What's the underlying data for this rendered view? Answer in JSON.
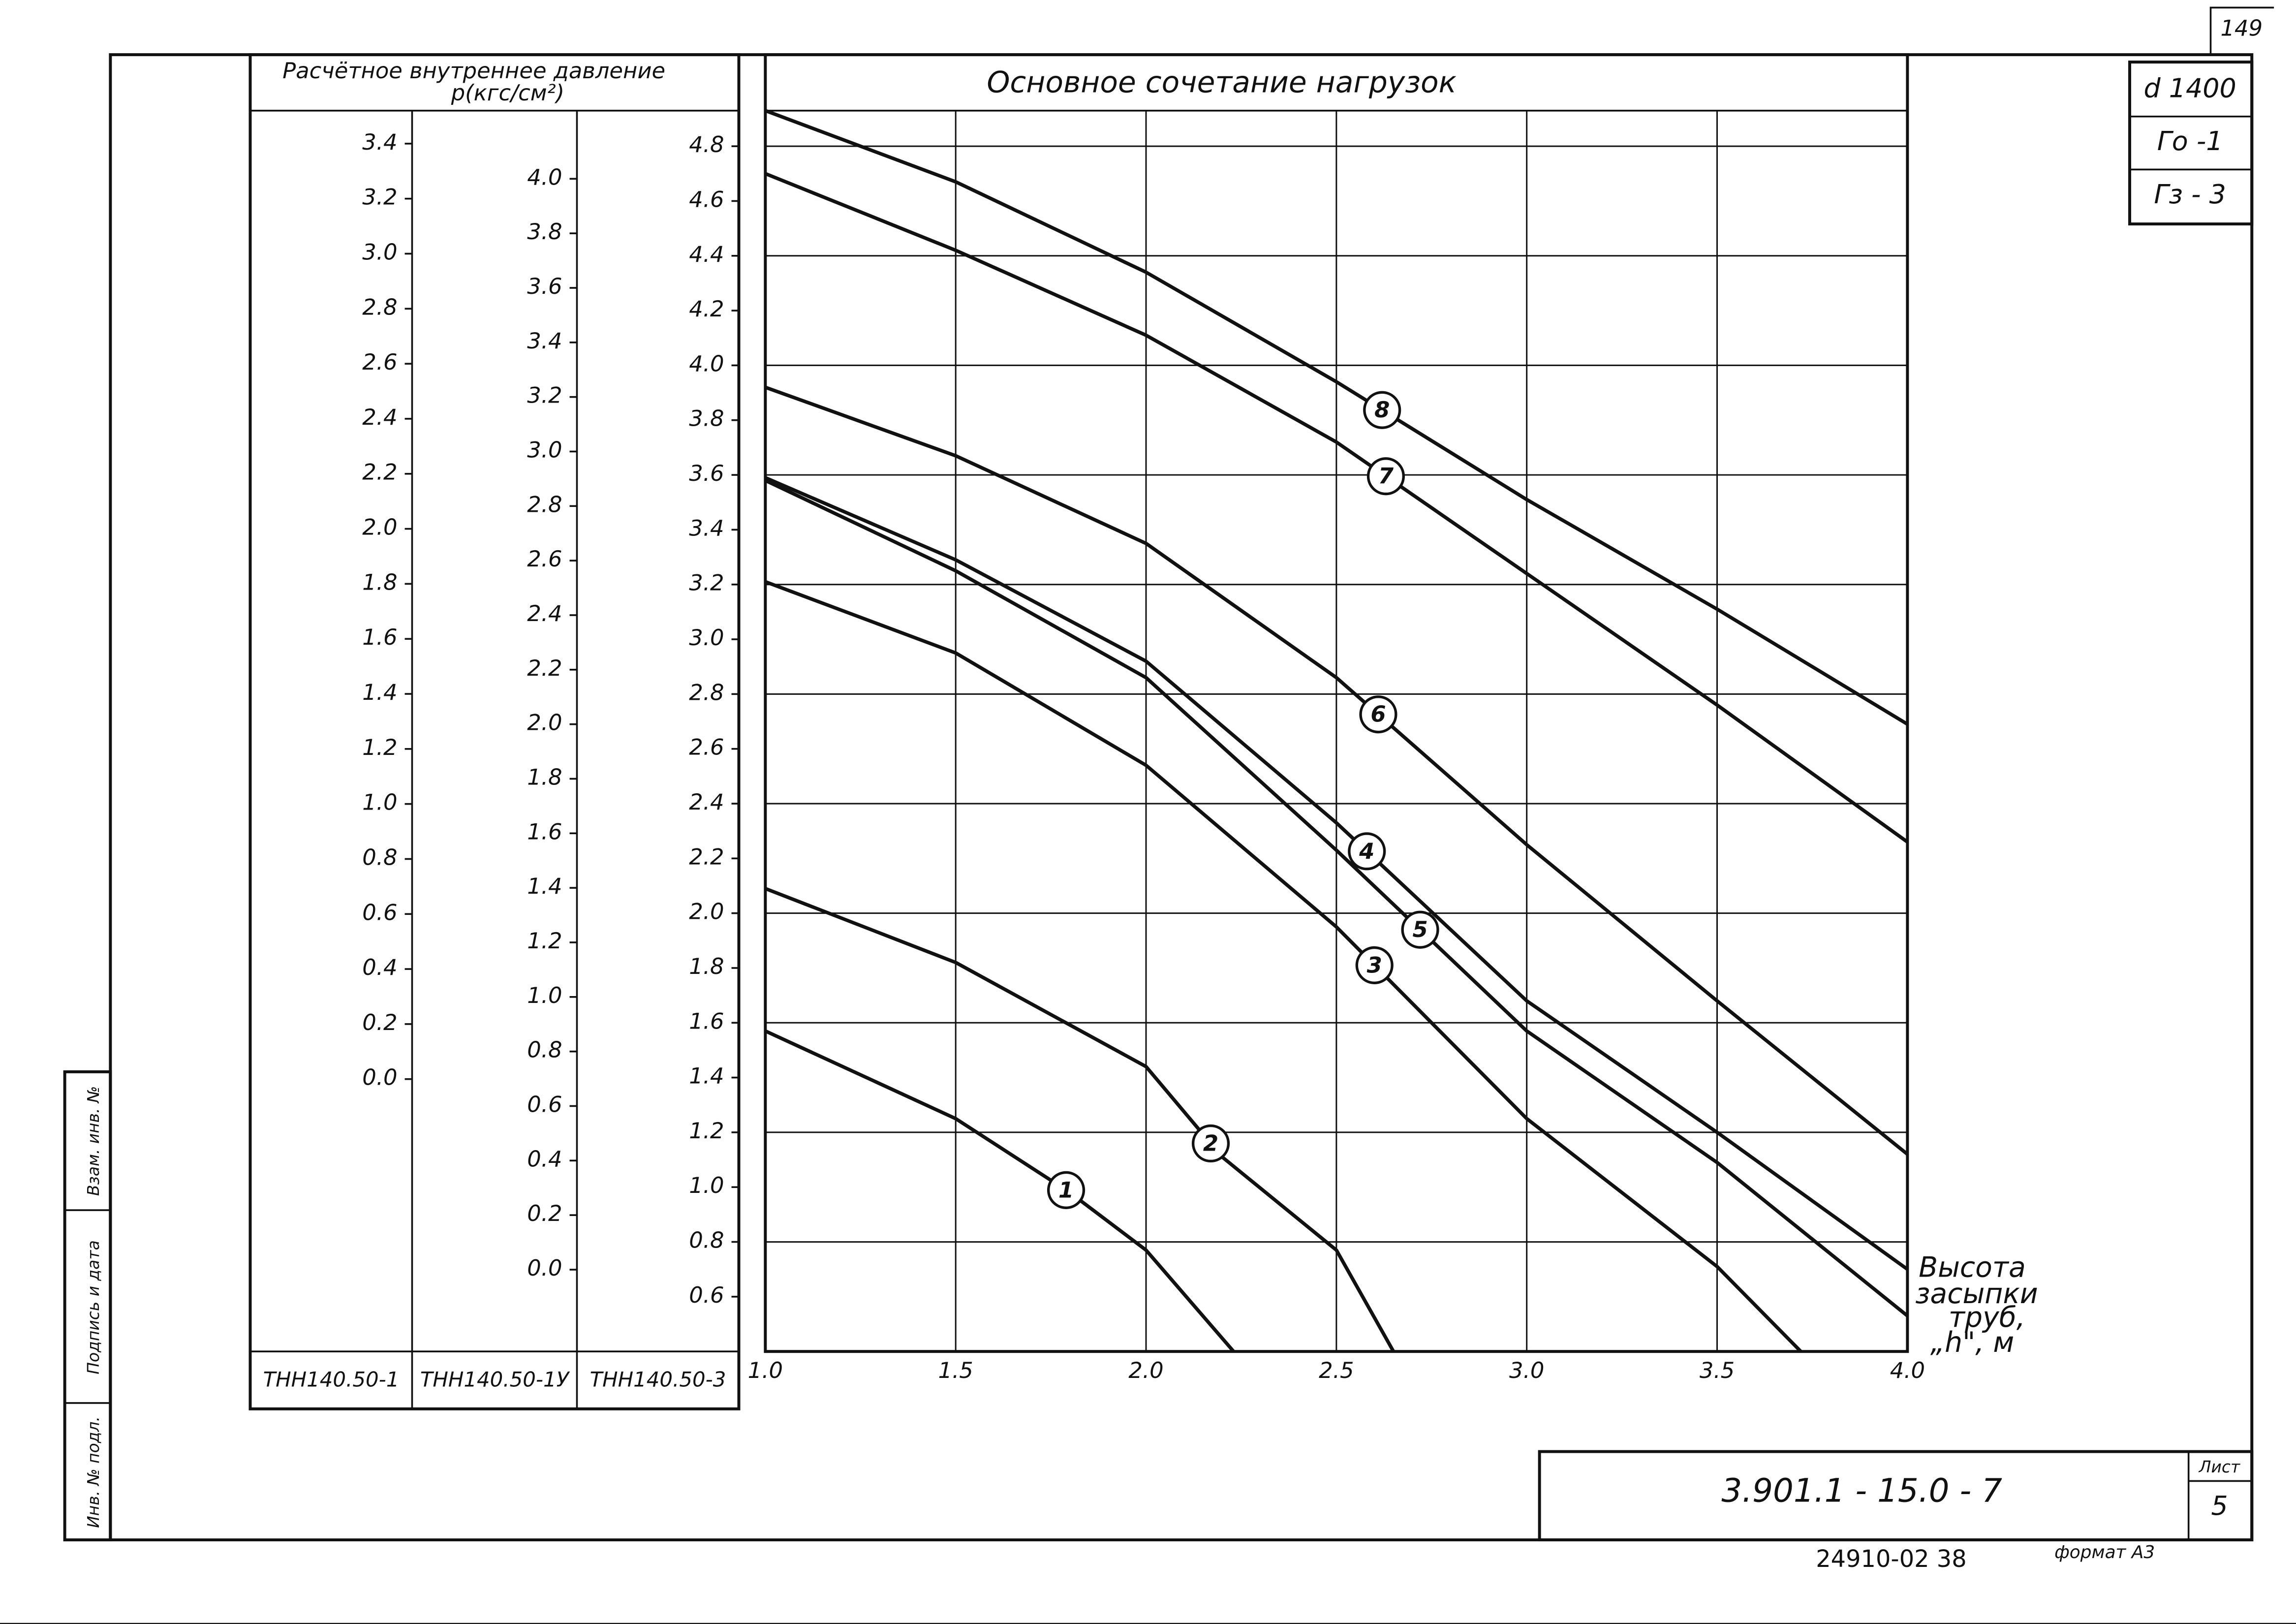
{
  "chart_data": {
    "type": "line",
    "title": "Основное сочетание нагрузок",
    "table_header": [
      "Расчётное внутреннее давление",
      "p(кгс/см²)"
    ],
    "xlabel": [
      "Высота",
      "засыпки",
      "труб,",
      "„h\", м"
    ],
    "xlim": [
      1,
      4
    ],
    "xticks": [
      {
        "value": 1,
        "label": "1.0"
      },
      1.5,
      {
        "value": 2,
        "label": "2.0"
      },
      2.5,
      {
        "value": 3,
        "label": "3.0"
      },
      3.5,
      {
        "value": 4,
        "label": "4.0"
      }
    ],
    "ylabel": "ТНН140.50-3",
    "ylim": [
      0.4,
      4.93
    ],
    "yticks": [
      4.8,
      4.6,
      4.4,
      4.2,
      {
        "value": 4,
        "label": "4.0"
      },
      3.8,
      3.6,
      3.4,
      3.2,
      {
        "value": 3,
        "label": "3.0"
      },
      2.8,
      2.6,
      2.4,
      2.2,
      {
        "value": 2,
        "label": "2.0"
      },
      1.8,
      1.6,
      1.4,
      1.2,
      {
        "value": 1,
        "label": "1.0"
      },
      0.8,
      0.6
    ],
    "ygrid": [
      4.8,
      4.4,
      4.0,
      3.6,
      3.2,
      2.8,
      2.4,
      2.0,
      1.6,
      1.2,
      0.8
    ],
    "grid": true,
    "extra_axes": [
      {
        "label": "ТНН140.50-1",
        "lim": [
          -0.99,
          3.52
        ],
        "ticks": [
          3.4,
          3.2,
          {
            "value": 3,
            "label": "3.0"
          },
          2.8,
          2.6,
          2.4,
          2.2,
          {
            "value": 2,
            "label": "2.0"
          },
          1.8,
          1.6,
          1.4,
          1.2,
          {
            "value": 1,
            "label": "1.0"
          },
          0.8,
          0.6,
          0.4,
          0.2,
          {
            "value": 0,
            "label": "0.0"
          }
        ]
      },
      {
        "label": "ТНН140.50-1У",
        "lim": [
          -0.3,
          4.25
        ],
        "ticks": [
          {
            "value": 4,
            "label": "4.0"
          },
          3.8,
          3.6,
          3.4,
          3.2,
          {
            "value": 3,
            "label": "3.0"
          },
          2.8,
          2.6,
          2.4,
          2.2,
          {
            "value": 2,
            "label": "2.0"
          },
          1.8,
          1.6,
          1.4,
          1.2,
          {
            "value": 1,
            "label": "1.0"
          },
          0.8,
          0.6,
          0.4,
          0.2,
          {
            "value": 0,
            "label": "0.0"
          }
        ]
      }
    ],
    "series": [
      {
        "name": "1",
        "color": "#111111",
        "x": [
          1,
          1.5,
          1.8,
          2,
          2.23
        ],
        "values": [
          1.57,
          1.25,
          0.98,
          0.77,
          0.4
        ]
      },
      {
        "name": "2",
        "color": "#111111",
        "x": [
          1,
          1.5,
          2,
          2.2,
          2.5,
          2.65
        ],
        "values": [
          2.09,
          1.82,
          1.44,
          1.11,
          0.77,
          0.4
        ]
      },
      {
        "name": "3",
        "color": "#111111",
        "x": [
          1,
          1.5,
          2,
          2.5,
          3,
          3.5,
          3.72
        ],
        "values": [
          3.21,
          2.95,
          2.54,
          1.95,
          1.25,
          0.71,
          0.4
        ]
      },
      {
        "name": "4",
        "color": "#111111",
        "x": [
          1,
          1.5,
          2,
          2.5,
          3,
          3.5,
          4
        ],
        "values": [
          3.59,
          3.29,
          2.92,
          2.33,
          1.68,
          1.2,
          0.7
        ]
      },
      {
        "name": "5",
        "color": "#111111",
        "x": [
          1,
          1.5,
          2,
          2.5,
          3,
          3.5,
          4
        ],
        "values": [
          3.58,
          3.25,
          2.86,
          2.23,
          1.57,
          1.09,
          0.53
        ]
      },
      {
        "name": "6",
        "color": "#111111",
        "x": [
          1,
          1.5,
          2,
          2.5,
          3,
          3.5,
          4
        ],
        "values": [
          3.92,
          3.67,
          3.35,
          2.86,
          2.25,
          1.68,
          1.12
        ]
      },
      {
        "name": "7",
        "color": "#111111",
        "x": [
          1,
          1.5,
          2,
          2.5,
          3,
          3.5,
          4
        ],
        "values": [
          4.7,
          4.42,
          4.11,
          3.72,
          3.24,
          2.76,
          2.26
        ]
      },
      {
        "name": "8",
        "color": "#111111",
        "x": [
          1,
          1.5,
          2,
          2.5,
          3,
          3.5,
          4
        ],
        "values": [
          4.93,
          4.67,
          4.34,
          3.94,
          3.51,
          3.11,
          2.69
        ]
      }
    ]
  },
  "frame": {
    "sheet_top": "149",
    "stamps": [
      "d 1400",
      "Го -1",
      "Гз - 3"
    ],
    "code": "3.901.1 - 15.0 - 7",
    "sheet_label": "Лист",
    "sheet": "5",
    "footer_number": "24910-02  38",
    "format": "формат А3",
    "side": [
      "Инв. № подл.",
      "Подпись и дата",
      "Взам. инв. №"
    ]
  }
}
